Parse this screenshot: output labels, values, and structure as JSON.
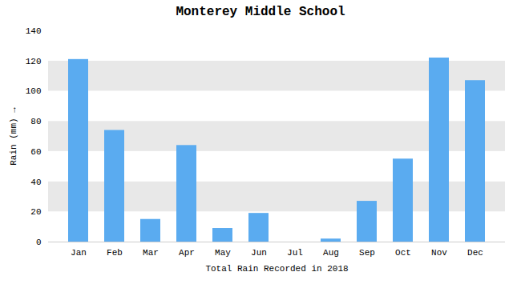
{
  "chart_data": {
    "type": "bar",
    "title": "Monterey Middle School",
    "xlabel": "Total Rain Recorded in 2018",
    "ylabel": "Rain (mm)",
    "categories": [
      "Jan",
      "Feb",
      "Mar",
      "Apr",
      "May",
      "Jun",
      "Jul",
      "Aug",
      "Sep",
      "Oct",
      "Nov",
      "Dec"
    ],
    "values": [
      121,
      74,
      15,
      64,
      9,
      19,
      0,
      2,
      27,
      55,
      122,
      107
    ],
    "color": "#5aabf0",
    "ylim": [
      0,
      140
    ],
    "yticks": [
      0,
      20,
      40,
      60,
      80,
      100,
      120,
      140
    ],
    "grid": true
  }
}
